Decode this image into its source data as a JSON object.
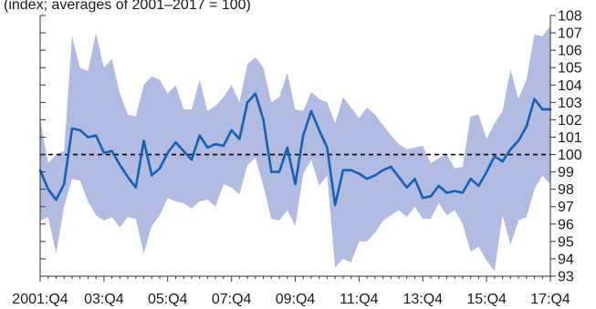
{
  "header": {
    "text": "(index; averages of 2001–2017 = 100)"
  },
  "chart_data": {
    "type": "line",
    "x_tick_labels": [
      "2001:Q4",
      "03:Q4",
      "05:Q4",
      "07:Q4",
      "09:Q4",
      "11:Q4",
      "13:Q4",
      "15:Q4",
      "17:Q4"
    ],
    "x_tick_index": [
      0,
      8,
      16,
      24,
      32,
      40,
      48,
      56,
      64
    ],
    "y_ticks": [
      93,
      94,
      95,
      96,
      97,
      98,
      99,
      100,
      101,
      102,
      103,
      104,
      105,
      106,
      107,
      108
    ],
    "ylim": [
      93,
      108
    ],
    "y_axis_side": "right",
    "reference_line": {
      "y": 100,
      "style": "dashed"
    },
    "colors": {
      "line": "#1461b3",
      "band": "#b2bbe2",
      "reference": "#000000",
      "axis": "#333333"
    },
    "series": [
      {
        "values": [
          99.1,
          98.0,
          97.4,
          98.3,
          101.5,
          101.4,
          101.0,
          101.1,
          100.1,
          100.2,
          99.4,
          98.7,
          98.1,
          100.8,
          98.8,
          99.2,
          100.1,
          100.7,
          100.2,
          99.7,
          101.1,
          100.4,
          100.6,
          100.5,
          101.4,
          100.9,
          103.0,
          103.5,
          102.0,
          99.0,
          99.0,
          100.4,
          98.3,
          101.1,
          102.5,
          101.4,
          100.4,
          97.1,
          99.1,
          99.1,
          98.9,
          98.6,
          98.8,
          99.1,
          99.3,
          98.7,
          98.1,
          98.6,
          97.5,
          97.6,
          98.2,
          97.8,
          97.9,
          97.8,
          98.6,
          98.2,
          99.0,
          99.9,
          99.6,
          100.3,
          100.8,
          101.6,
          103.2,
          102.6,
          102.6
        ]
      }
    ],
    "band": {
      "upper": [
        102.0,
        99.5,
        100.0,
        100.2,
        106.8,
        105.0,
        104.8,
        107.0,
        105.0,
        105.5,
        103.5,
        102.3,
        102.2,
        104.0,
        104.5,
        104.3,
        103.5,
        104.0,
        102.6,
        102.6,
        104.3,
        102.5,
        102.8,
        103.3,
        104.0,
        103.0,
        105.2,
        105.6,
        105.0,
        103.0,
        103.3,
        104.7,
        102.6,
        102.5,
        103.6,
        103.2,
        103.0,
        101.8,
        103.3,
        102.7,
        102.1,
        102.7,
        102.3,
        101.7,
        101.1,
        100.6,
        100.3,
        100.4,
        100.5,
        99.5,
        99.8,
        100.0,
        99.2,
        99.3,
        102.2,
        102.3,
        100.9,
        101.8,
        102.5,
        104.9,
        103.2,
        104.3,
        106.9,
        106.8,
        107.4
      ],
      "lower": [
        96.2,
        96.4,
        94.3,
        97.0,
        98.6,
        98.5,
        97.3,
        96.5,
        96.2,
        96.4,
        95.8,
        96.4,
        96.3,
        94.3,
        95.9,
        96.5,
        97.5,
        97.3,
        97.2,
        96.9,
        97.3,
        97.4,
        97.0,
        98.3,
        98.1,
        97.7,
        99.4,
        99.8,
        98.2,
        96.3,
        96.2,
        96.8,
        95.9,
        98.9,
        99.7,
        98.2,
        98.8,
        93.5,
        94.0,
        93.8,
        95.0,
        95.0,
        95.5,
        96.2,
        96.5,
        96.8,
        96.4,
        97.0,
        96.3,
        96.3,
        97.2,
        96.5,
        96.8,
        96.0,
        94.4,
        94.7,
        93.9,
        93.3,
        96.5,
        94.8,
        96.2,
        96.4,
        98.0,
        98.8,
        98.3
      ]
    }
  }
}
